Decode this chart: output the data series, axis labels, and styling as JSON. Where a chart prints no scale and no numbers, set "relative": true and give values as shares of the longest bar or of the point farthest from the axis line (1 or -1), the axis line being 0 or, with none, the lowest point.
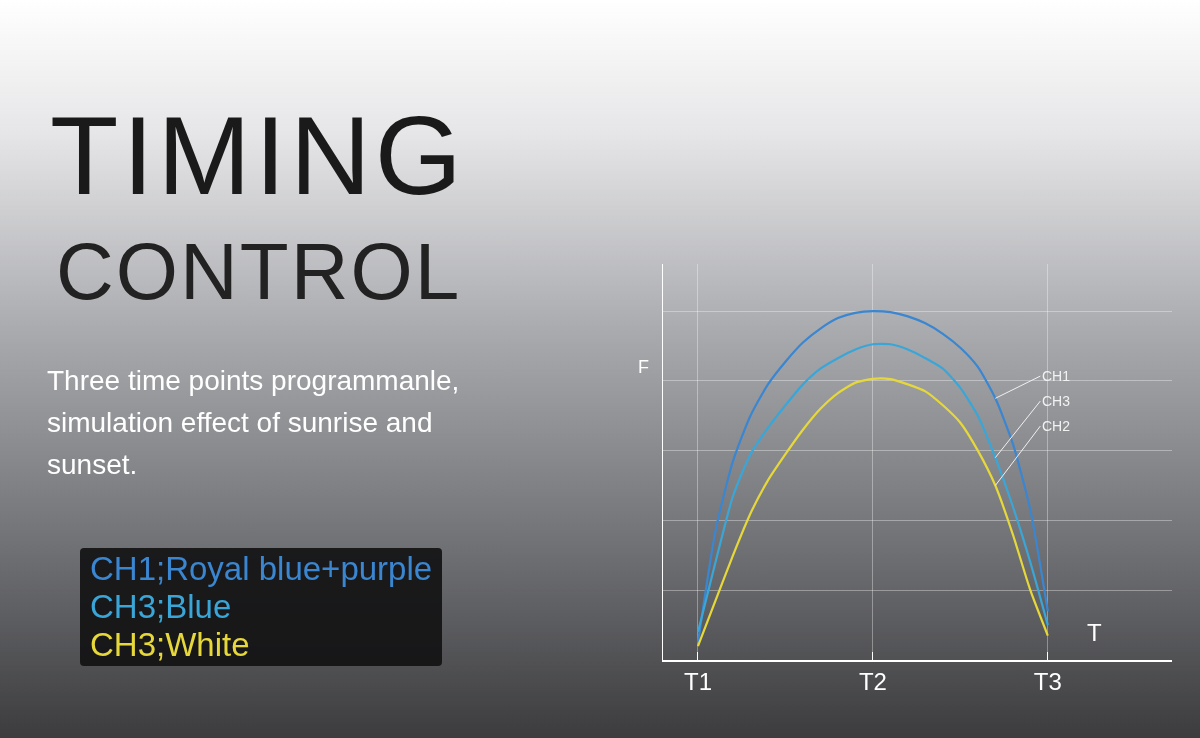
{
  "chart_data": {
    "type": "line",
    "title": "TIMING",
    "subtitle": "CONTROL",
    "xlabel": "T",
    "ylabel": "F",
    "relative": true,
    "grid": true,
    "legend": false,
    "marker": "none",
    "line_style": "solid",
    "categories": [
      "T1",
      null,
      null,
      null,
      null,
      null,
      null,
      null,
      null,
      null,
      "T2",
      null,
      null,
      null,
      null,
      null,
      null,
      null,
      null,
      null,
      "T3"
    ],
    "annotations": [
      "Three time points programmanle, simulation effect of sunrise and sunset.",
      "CH1;Royal blue+purple",
      "CH3;Blue",
      "CH3;White"
    ],
    "series": [
      {
        "name": "CH1",
        "color": "#3a86d0",
        "values": [
          0.05,
          0.37,
          0.57,
          0.7,
          0.79,
          0.855,
          0.91,
          0.95,
          0.98,
          0.995,
          1,
          0.997,
          0.985,
          0.965,
          0.935,
          0.895,
          0.84,
          0.75,
          0.62,
          0.43,
          0.14
        ]
      },
      {
        "name": "CH3",
        "color": "#3aa6d8",
        "values": [
          0.08,
          0.28,
          0.47,
          0.59,
          0.665,
          0.73,
          0.79,
          0.835,
          0.865,
          0.89,
          0.905,
          0.905,
          0.89,
          0.865,
          0.835,
          0.78,
          0.7,
          0.58,
          0.44,
          0.28,
          0.1
        ]
      },
      {
        "name": "CH2",
        "color": "#e6d83a",
        "values": [
          0.04,
          0.17,
          0.3,
          0.42,
          0.515,
          0.59,
          0.66,
          0.72,
          0.765,
          0.795,
          0.806,
          0.805,
          0.79,
          0.77,
          0.73,
          0.68,
          0.6,
          0.5,
          0.36,
          0.2,
          0.07
        ]
      }
    ]
  }
}
